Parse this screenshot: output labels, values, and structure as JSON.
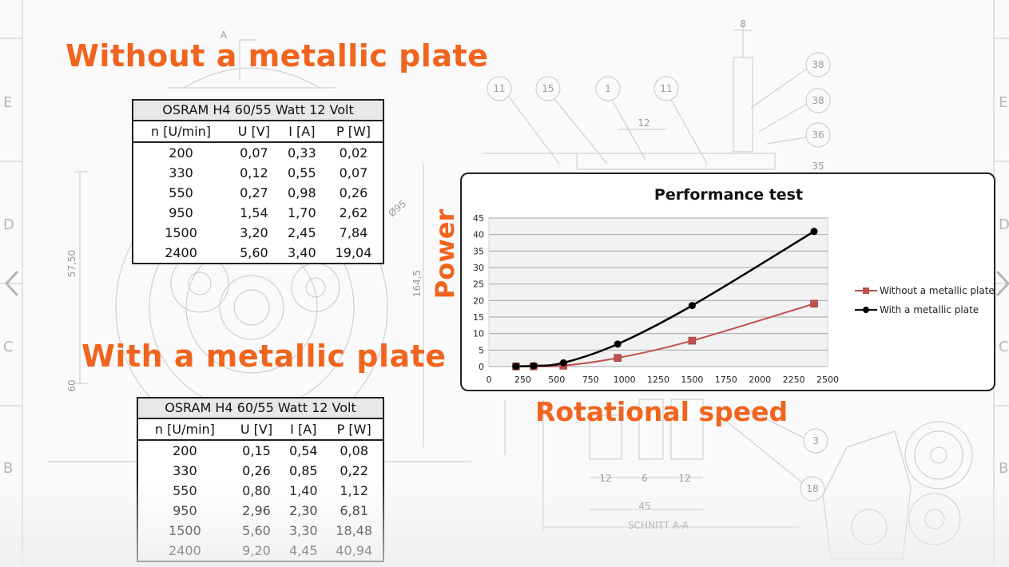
{
  "headings": {
    "without": "Without a metallic plate",
    "with": "With a metallic plate"
  },
  "tables": {
    "without": {
      "title": "OSRAM H4 60/55 Watt 12 Volt",
      "headers": [
        "n [U/min]",
        "U [V]",
        "I [A]",
        "P [W]"
      ],
      "rows": [
        [
          "200",
          "0,07",
          "0,33",
          "0,02"
        ],
        [
          "330",
          "0,12",
          "0,55",
          "0,07"
        ],
        [
          "550",
          "0,27",
          "0,98",
          "0,26"
        ],
        [
          "950",
          "1,54",
          "1,70",
          "2,62"
        ],
        [
          "1500",
          "3,20",
          "2,45",
          "7,84"
        ],
        [
          "2400",
          "5,60",
          "3,40",
          "19,04"
        ]
      ]
    },
    "with": {
      "title": "OSRAM H4 60/55 Watt 12 Volt",
      "headers": [
        "n [U/min]",
        "U [V]",
        "I [A]",
        "P [W]"
      ],
      "rows": [
        [
          "200",
          "0,15",
          "0,54",
          "0,08"
        ],
        [
          "330",
          "0,26",
          "0,85",
          "0,22"
        ],
        [
          "550",
          "0,80",
          "1,40",
          "1,12"
        ],
        [
          "950",
          "2,96",
          "2,30",
          "6,81"
        ],
        [
          "1500",
          "5,60",
          "3,30",
          "18,48"
        ],
        [
          "2400",
          "9,20",
          "4,45",
          "40,94"
        ]
      ]
    }
  },
  "chart_data": {
    "type": "line",
    "title": "Performance test",
    "xlabel": "Rotational speed",
    "ylabel": "Power",
    "xlim": [
      0,
      2500
    ],
    "ylim": [
      0,
      45
    ],
    "xticks": [
      0,
      250,
      500,
      750,
      1000,
      1250,
      1500,
      1750,
      2000,
      2250,
      2500
    ],
    "yticks": [
      0,
      5,
      10,
      15,
      20,
      25,
      30,
      35,
      40,
      45
    ],
    "grid": true,
    "legend_position": "right",
    "series": [
      {
        "name": "Without a metallic plate",
        "color": "#c0504d",
        "marker": "square",
        "x": [
          200,
          330,
          550,
          950,
          1500,
          2400
        ],
        "y": [
          0.02,
          0.07,
          0.26,
          2.62,
          7.84,
          19.04
        ]
      },
      {
        "name": "With a metallic plate",
        "color": "#000000",
        "marker": "circle",
        "x": [
          200,
          330,
          550,
          950,
          1500,
          2400
        ],
        "y": [
          0.08,
          0.22,
          1.12,
          6.81,
          18.48,
          40.94
        ]
      }
    ]
  },
  "drawing": {
    "row_labels": [
      "E",
      "D",
      "C",
      "B"
    ],
    "callouts": [
      "11",
      "15",
      "1",
      "11",
      "38",
      "38",
      "36",
      "35",
      "3",
      "18"
    ],
    "dimensions": [
      "8",
      "12",
      "12",
      "6",
      "12",
      "45",
      "57,50",
      "164,5",
      "60",
      "Ø95",
      "A"
    ],
    "section_label": "SCHNITT A-A"
  }
}
